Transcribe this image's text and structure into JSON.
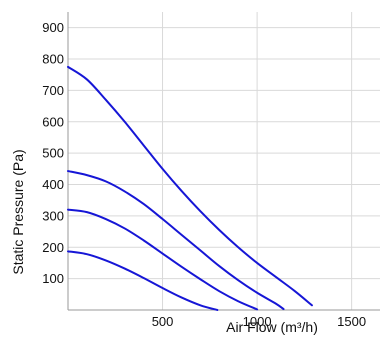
{
  "chart_data": {
    "type": "line",
    "title": "",
    "xlabel": "Air Flow (m³/h)",
    "ylabel": "Static Pressure (Pa)",
    "xlim": [
      0,
      1650
    ],
    "ylim": [
      0,
      950
    ],
    "x_ticks": [
      500,
      1000,
      1500
    ],
    "y_ticks": [
      100,
      200,
      300,
      400,
      500,
      600,
      700,
      800,
      900
    ],
    "grid": true,
    "legend": "none",
    "line_color": "#1616d6",
    "series": [
      {
        "x": [
          0,
          100,
          200,
          300,
          400,
          500,
          600,
          700,
          800,
          900,
          1000,
          1100,
          1200,
          1290
        ],
        "y": [
          775,
          735,
          670,
          600,
          525,
          450,
          380,
          315,
          255,
          200,
          150,
          105,
          60,
          15
        ]
      },
      {
        "x": [
          0,
          100,
          200,
          300,
          400,
          500,
          600,
          700,
          800,
          900,
          1000,
          1100,
          1140
        ],
        "y": [
          443,
          430,
          410,
          378,
          338,
          290,
          240,
          190,
          140,
          95,
          55,
          20,
          3
        ]
      },
      {
        "x": [
          0,
          100,
          200,
          300,
          400,
          500,
          600,
          700,
          800,
          900,
          1000
        ],
        "y": [
          320,
          312,
          290,
          260,
          222,
          180,
          138,
          98,
          60,
          28,
          2
        ]
      },
      {
        "x": [
          0,
          100,
          200,
          300,
          400,
          500,
          600,
          700,
          790
        ],
        "y": [
          187,
          178,
          158,
          132,
          102,
          70,
          40,
          15,
          0
        ]
      }
    ]
  }
}
